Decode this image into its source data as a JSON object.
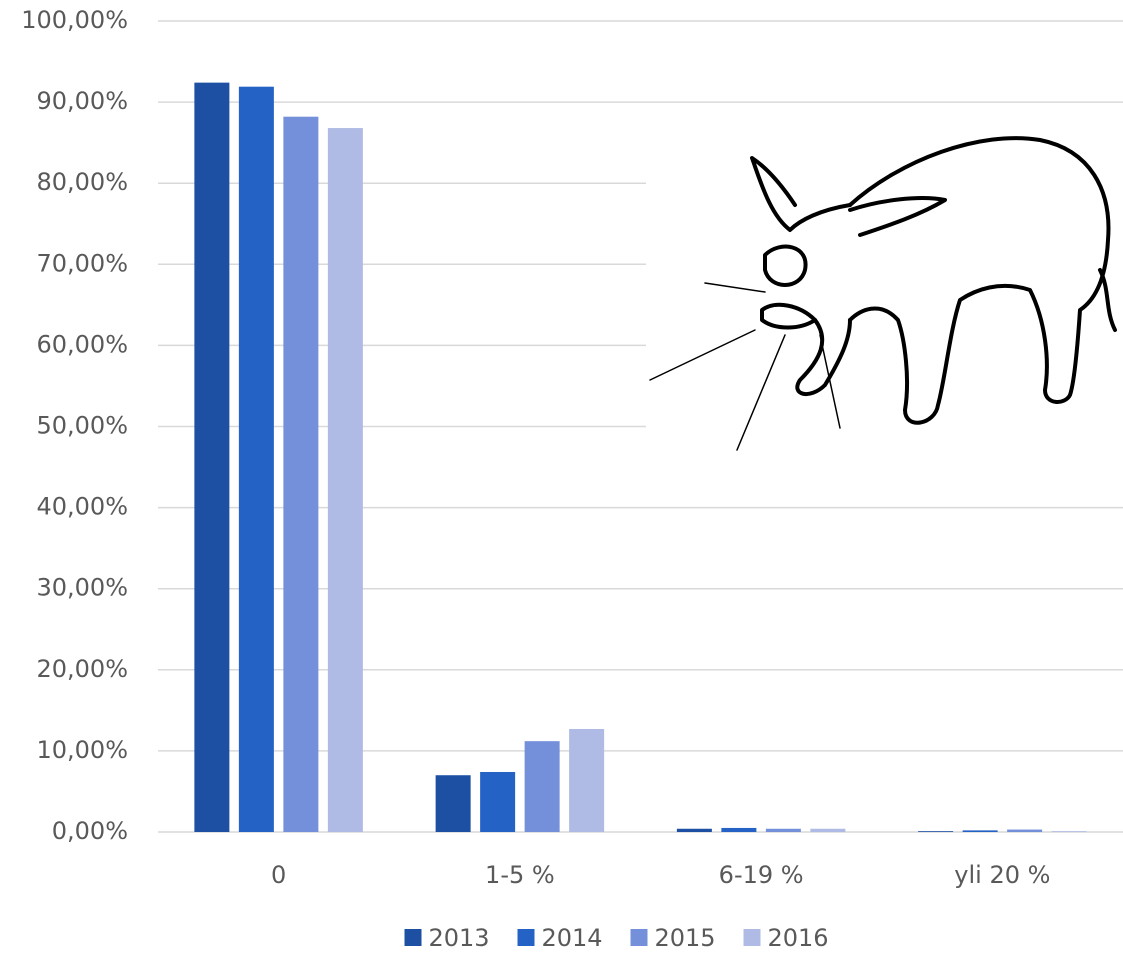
{
  "chart_data": {
    "type": "bar",
    "categories": [
      "0",
      "1-5 %",
      "6-19 %",
      "yli 20 %"
    ],
    "series": [
      {
        "name": "2013",
        "color": "#1d4fa3",
        "values": [
          92.4,
          7.0,
          0.4,
          0.1
        ]
      },
      {
        "name": "2014",
        "color": "#2463c5",
        "values": [
          91.9,
          7.4,
          0.5,
          0.2
        ]
      },
      {
        "name": "2015",
        "color": "#7490da",
        "values": [
          88.2,
          11.2,
          0.4,
          0.3
        ]
      },
      {
        "name": "2016",
        "color": "#afbbe4",
        "values": [
          86.8,
          12.7,
          0.4,
          0.1
        ]
      }
    ],
    "ylim": [
      0,
      100
    ],
    "yticks": [
      {
        "value": 0,
        "label": "0,00%"
      },
      {
        "value": 10,
        "label": "10,00%"
      },
      {
        "value": 20,
        "label": "20,00%"
      },
      {
        "value": 30,
        "label": "30,00%"
      },
      {
        "value": 40,
        "label": "40,00%"
      },
      {
        "value": 50,
        "label": "50,00%"
      },
      {
        "value": 60,
        "label": "60,00%"
      },
      {
        "value": 70,
        "label": "70,00%"
      },
      {
        "value": 80,
        "label": "80,00%"
      },
      {
        "value": 90,
        "label": "90,00%"
      },
      {
        "value": 100,
        "label": "100,00%"
      }
    ],
    "grid": true,
    "legend": "bottom"
  }
}
